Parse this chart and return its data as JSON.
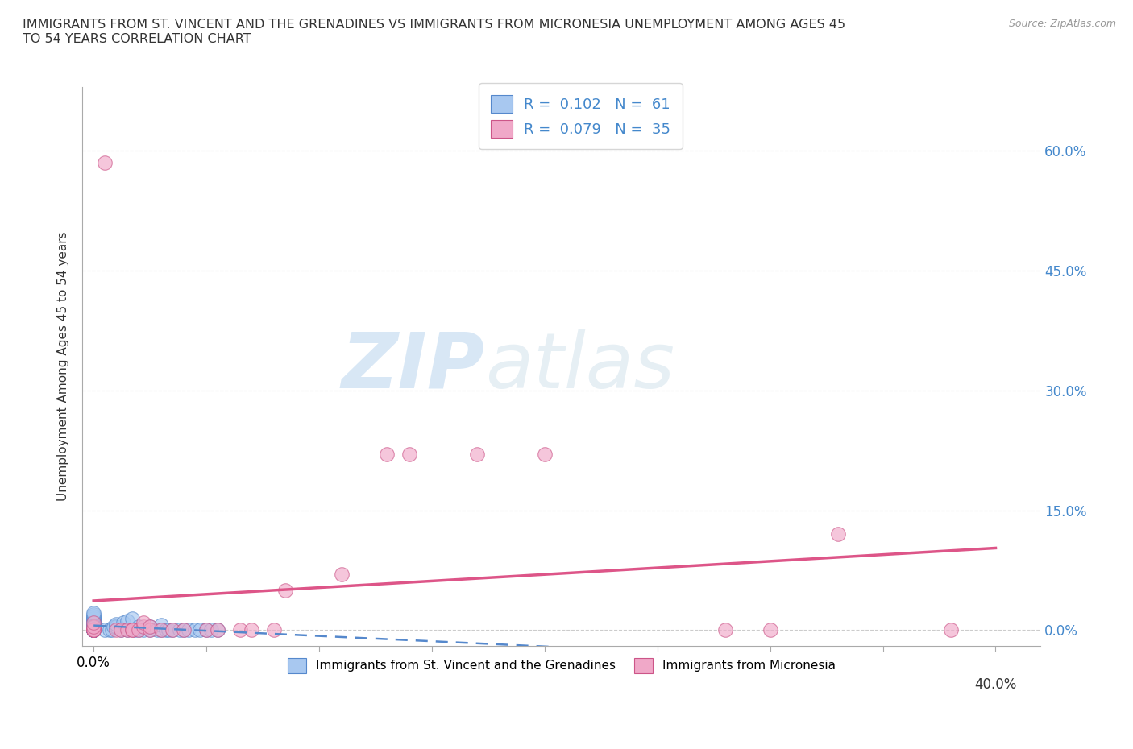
{
  "title": "IMMIGRANTS FROM ST. VINCENT AND THE GRENADINES VS IMMIGRANTS FROM MICRONESIA UNEMPLOYMENT AMONG AGES 45\nTO 54 YEARS CORRELATION CHART",
  "source_text": "Source: ZipAtlas.com",
  "ylabel": "Unemployment Among Ages 45 to 54 years",
  "series1_label": "Immigrants from St. Vincent and the Grenadines",
  "series2_label": "Immigrants from Micronesia",
  "series1_color": "#a8c8f0",
  "series2_color": "#f0a8c8",
  "series1_edge": "#5588cc",
  "series2_edge": "#cc5588",
  "trend1_color": "#5588cc",
  "trend2_color": "#dd5588",
  "R1": 0.102,
  "N1": 61,
  "R2": 0.079,
  "N2": 35,
  "watermark_zip": "ZIP",
  "watermark_atlas": "atlas",
  "ylim_min": -0.02,
  "ylim_max": 0.68,
  "xlim_min": -0.005,
  "xlim_max": 0.42,
  "yticks": [
    0.0,
    0.15,
    0.3,
    0.45,
    0.6
  ],
  "ytick_labels": [
    "0.0%",
    "15.0%",
    "30.0%",
    "45.0%",
    "60.0%"
  ],
  "xtick_left": "0.0%",
  "xtick_right": "40.0%",
  "blue_x": [
    0.0,
    0.0,
    0.0,
    0.0,
    0.0,
    0.0,
    0.0,
    0.0,
    0.0,
    0.0,
    0.0,
    0.0,
    0.0,
    0.0,
    0.0,
    0.0,
    0.0,
    0.0,
    0.0,
    0.0,
    0.0,
    0.0,
    0.0,
    0.0,
    0.0,
    0.0,
    0.0,
    0.0,
    0.0,
    0.0,
    0.005,
    0.007,
    0.008,
    0.009,
    0.01,
    0.01,
    0.012,
    0.013,
    0.015,
    0.015,
    0.017,
    0.018,
    0.02,
    0.02,
    0.022,
    0.025,
    0.025,
    0.028,
    0.03,
    0.03,
    0.032,
    0.033,
    0.035,
    0.038,
    0.04,
    0.042,
    0.045,
    0.047,
    0.05,
    0.052,
    0.055
  ],
  "blue_y": [
    0.0,
    0.0,
    0.0,
    0.0,
    0.0,
    0.0,
    0.0,
    0.0,
    0.0,
    0.0,
    0.0,
    0.0,
    0.0,
    0.0,
    0.0,
    0.005,
    0.005,
    0.007,
    0.007,
    0.008,
    0.01,
    0.01,
    0.012,
    0.013,
    0.015,
    0.015,
    0.017,
    0.018,
    0.02,
    0.022,
    0.0,
    0.0,
    0.0,
    0.005,
    0.005,
    0.008,
    0.0,
    0.01,
    0.0,
    0.012,
    0.015,
    0.0,
    0.0,
    0.005,
    0.0,
    0.0,
    0.005,
    0.0,
    0.0,
    0.007,
    0.0,
    0.0,
    0.0,
    0.0,
    0.0,
    0.0,
    0.0,
    0.0,
    0.0,
    0.0,
    0.0
  ],
  "pink_x": [
    0.005,
    0.0,
    0.0,
    0.0,
    0.0,
    0.0,
    0.0,
    0.01,
    0.012,
    0.015,
    0.017,
    0.017,
    0.02,
    0.022,
    0.022,
    0.025,
    0.025,
    0.03,
    0.035,
    0.04,
    0.05,
    0.055,
    0.065,
    0.07,
    0.08,
    0.085,
    0.11,
    0.13,
    0.14,
    0.17,
    0.2,
    0.28,
    0.3,
    0.33,
    0.38
  ],
  "pink_y": [
    0.585,
    0.0,
    0.0,
    0.0,
    0.0,
    0.005,
    0.01,
    0.0,
    0.0,
    0.0,
    0.0,
    0.0,
    0.0,
    0.005,
    0.01,
    0.0,
    0.005,
    0.0,
    0.0,
    0.0,
    0.0,
    0.0,
    0.0,
    0.0,
    0.0,
    0.05,
    0.07,
    0.22,
    0.22,
    0.22,
    0.22,
    0.0,
    0.0,
    0.12,
    0.0
  ]
}
